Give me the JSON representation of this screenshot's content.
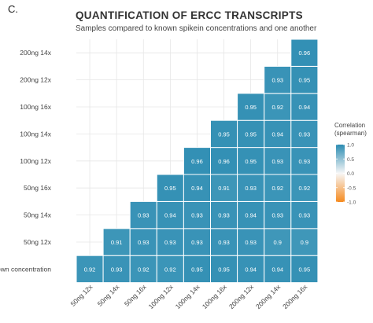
{
  "panel_label": "C.",
  "title": "QUANTIFICATION OF ERCC TRANSCRIPTS",
  "subtitle": "Samples compared to known spikein concentrations and one another",
  "colors": {
    "high": "#2b8cb2",
    "mid": "#f7f7f7",
    "low": "#f58a1f",
    "grid": "#e6e6e6"
  },
  "chart_data": {
    "type": "heatmap",
    "title": "QUANTIFICATION OF ERCC TRANSCRIPTS",
    "subtitle": "Samples compared to known spikein concentrations and one another",
    "x_categories": [
      "50ng 12x",
      "50ng 14x",
      "50ng 16x",
      "100ng 12x",
      "100ng 14x",
      "100ng 16x",
      "200ng 12x",
      "200ng 14x",
      "200ng 16x"
    ],
    "y_categories": [
      "Known concentration",
      "50ng 12x",
      "50ng 14x",
      "50ng 16x",
      "100ng 12x",
      "100ng 14x",
      "100ng 16x",
      "200ng 12x",
      "200ng 14x"
    ],
    "values": [
      [
        0.92,
        0.93,
        0.92,
        0.92,
        0.95,
        0.95,
        0.94,
        0.94,
        0.95
      ],
      [
        null,
        0.91,
        0.93,
        0.93,
        0.93,
        0.93,
        0.93,
        0.9,
        0.9
      ],
      [
        null,
        null,
        0.93,
        0.94,
        0.93,
        0.93,
        0.94,
        0.93,
        0.93
      ],
      [
        null,
        null,
        null,
        0.95,
        0.94,
        0.91,
        0.93,
        0.92,
        0.92
      ],
      [
        null,
        null,
        null,
        null,
        0.96,
        0.96,
        0.95,
        0.93,
        0.93
      ],
      [
        null,
        null,
        null,
        null,
        null,
        0.95,
        0.95,
        0.94,
        0.93
      ],
      [
        null,
        null,
        null,
        null,
        null,
        null,
        0.95,
        0.92,
        0.94
      ],
      [
        null,
        null,
        null,
        null,
        null,
        null,
        null,
        0.93,
        0.95
      ],
      [
        null,
        null,
        null,
        null,
        null,
        null,
        null,
        null,
        0.96
      ]
    ],
    "legend": {
      "title": "Correlation\n(spearman)",
      "ticks": [
        1.0,
        0.5,
        0.0,
        -0.5,
        -1.0
      ],
      "tick_labels": [
        "1.0",
        "0.5",
        "0.0",
        "-0.5",
        "-1.0"
      ],
      "range": [
        -1,
        1
      ],
      "position": "right"
    },
    "grid": true
  }
}
